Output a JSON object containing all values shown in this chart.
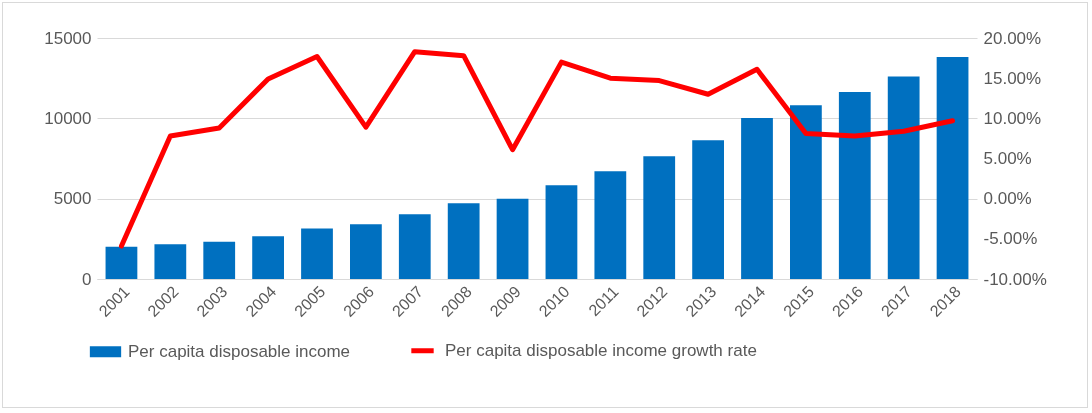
{
  "chart_data": {
    "type": "bar",
    "categories": [
      "2001",
      "2002",
      "2003",
      "2004",
      "2005",
      "2006",
      "2007",
      "2008",
      "2009",
      "2010",
      "2011",
      "2012",
      "2013",
      "2014",
      "2015",
      "2016",
      "2017",
      "2018"
    ],
    "series": [
      {
        "name": "Per capita disposable income",
        "color": "#0070c0",
        "values": [
          2000,
          2160,
          2320,
          2660,
          3150,
          3400,
          4030,
          4710,
          5000,
          5830,
          6700,
          7640,
          8630,
          10020,
          10810,
          11640,
          12610,
          13810
        ]
      },
      {
        "name": "Per capita disposable income growth rate",
        "type": "line",
        "axis": "y2",
        "color": "#ff0000",
        "values": [
          -5.9,
          7.8,
          8.8,
          14.9,
          17.7,
          8.9,
          18.3,
          17.8,
          6.1,
          17.0,
          15.0,
          14.7,
          13.0,
          16.1,
          8.1,
          7.8,
          8.4,
          9.7
        ]
      }
    ],
    "ylim": [
      0,
      15000
    ],
    "yticks": [
      0,
      5000,
      10000,
      15000
    ],
    "y2lim": [
      -10,
      20
    ],
    "y2ticks": [
      {
        "value": -10,
        "label": "-10.00%"
      },
      {
        "value": -5,
        "label": "-5.00%"
      },
      {
        "value": 0,
        "label": "0.00%"
      },
      {
        "value": 5,
        "label": "5.00%"
      },
      {
        "value": 10,
        "label": "10.00%"
      },
      {
        "value": 15,
        "label": "15.00%"
      },
      {
        "value": 20,
        "label": "20.00%"
      }
    ],
    "grid": "y",
    "legend": "bottom",
    "line_style": "solid"
  }
}
